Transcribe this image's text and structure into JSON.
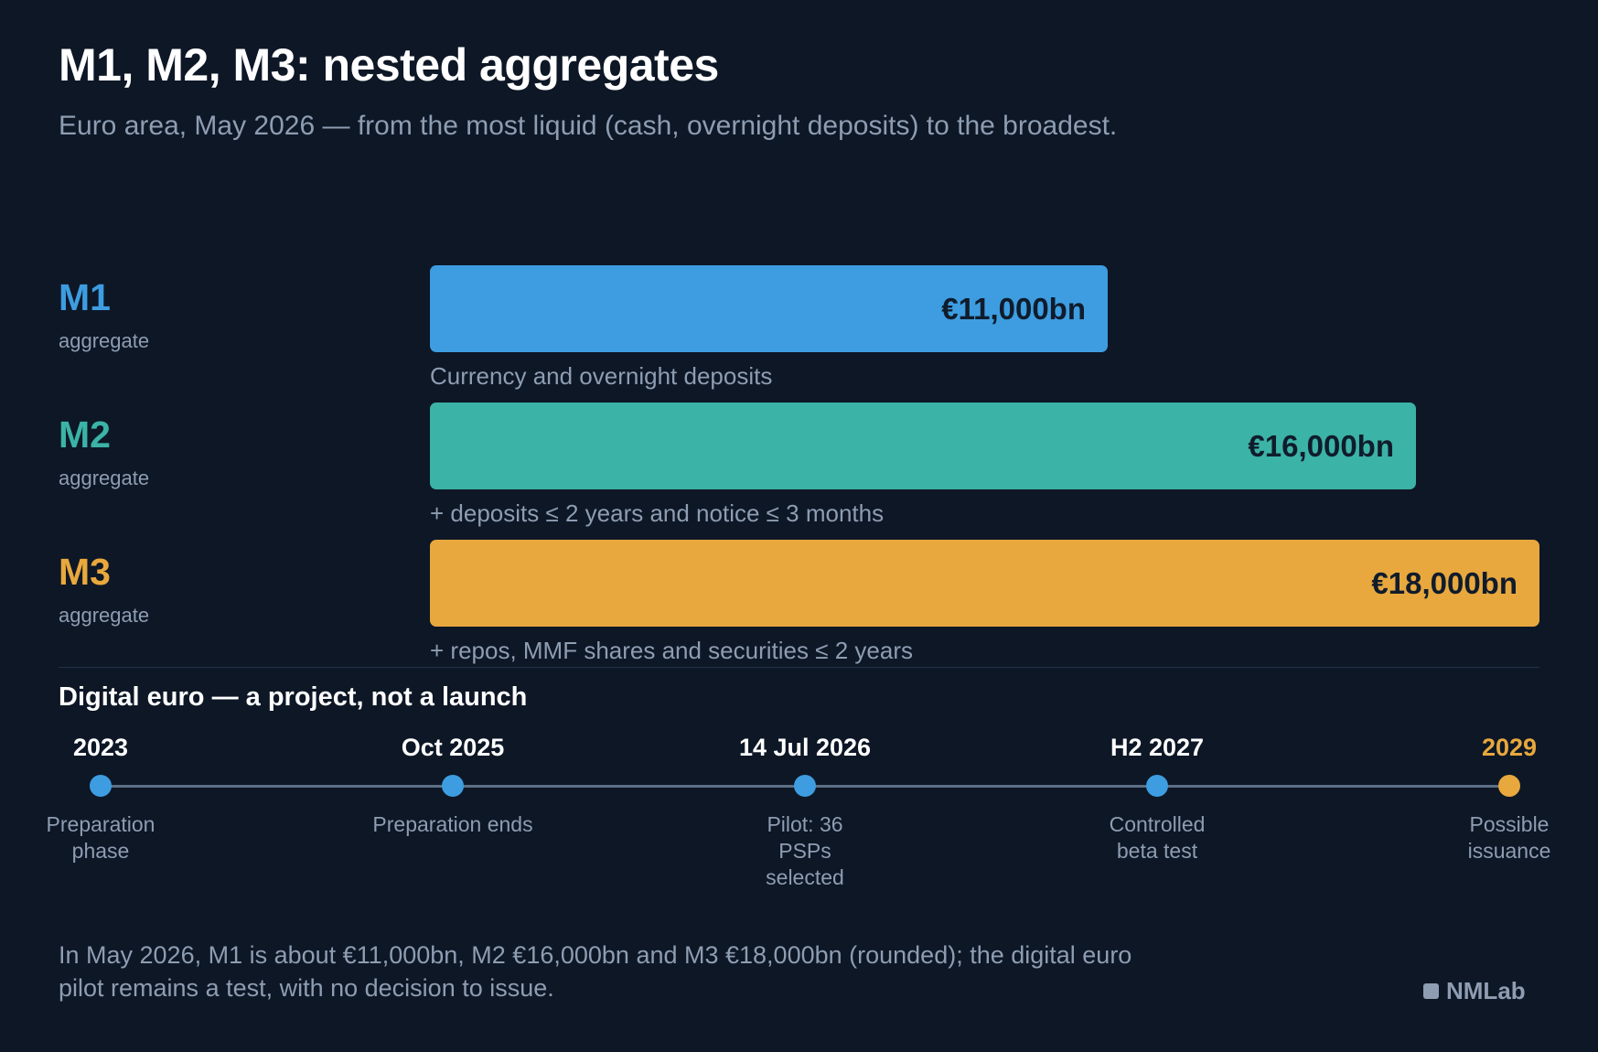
{
  "header": {
    "title": "M1, M2, M3: nested aggregates",
    "subtitle": "Euro area, May 2026 — from the most liquid (cash, overnight deposits) to the broadest."
  },
  "chart_data": {
    "type": "bar",
    "orientation": "horizontal",
    "categories": [
      "M1",
      "M2",
      "M3"
    ],
    "values": [
      11000,
      16000,
      18000
    ],
    "unit": "€bn",
    "xlim": [
      0,
      18000
    ],
    "grid": false,
    "bars": [
      {
        "name": "M1",
        "sublabel": "aggregate",
        "value": 11000,
        "value_label": "€11,000bn",
        "note": "Currency and overnight deposits",
        "color": "#3d9de0"
      },
      {
        "name": "M2",
        "sublabel": "aggregate",
        "value": 16000,
        "value_label": "€16,000bn",
        "note": "+ deposits ≤ 2 years and notice ≤ 3 months",
        "color": "#3bb3a6"
      },
      {
        "name": "M3",
        "sublabel": "aggregate",
        "value": 18000,
        "value_label": "€18,000bn",
        "note": "+ repos, MMF shares and securities ≤ 2 years",
        "color": "#e8a83d"
      }
    ]
  },
  "timeline": {
    "heading": "Digital euro — a project, not a launch",
    "line_color": "#5d6f85",
    "milestones": [
      {
        "date": "2023",
        "label": "Preparation phase",
        "dot_color": "#3d9de0",
        "date_color": "#ffffff"
      },
      {
        "date": "Oct 2025",
        "label": "Preparation ends",
        "dot_color": "#3d9de0",
        "date_color": "#ffffff"
      },
      {
        "date": "14 Jul 2026",
        "label": "Pilot: 36 PSPs selected",
        "dot_color": "#3d9de0",
        "date_color": "#ffffff"
      },
      {
        "date": "H2 2027",
        "label": "Controlled beta test",
        "dot_color": "#3d9de0",
        "date_color": "#ffffff"
      },
      {
        "date": "2029",
        "label": "Possible issuance",
        "dot_color": "#e8a83d",
        "date_color": "#e8a83d"
      }
    ]
  },
  "footer": {
    "text": "In May 2026, M1 is about €11,000bn, M2 €16,000bn and M3 €18,000bn (rounded); the digital euro pilot remains a test, with no decision to issue.",
    "brand": "NMLab",
    "brand_icon": "square-logo-icon"
  }
}
